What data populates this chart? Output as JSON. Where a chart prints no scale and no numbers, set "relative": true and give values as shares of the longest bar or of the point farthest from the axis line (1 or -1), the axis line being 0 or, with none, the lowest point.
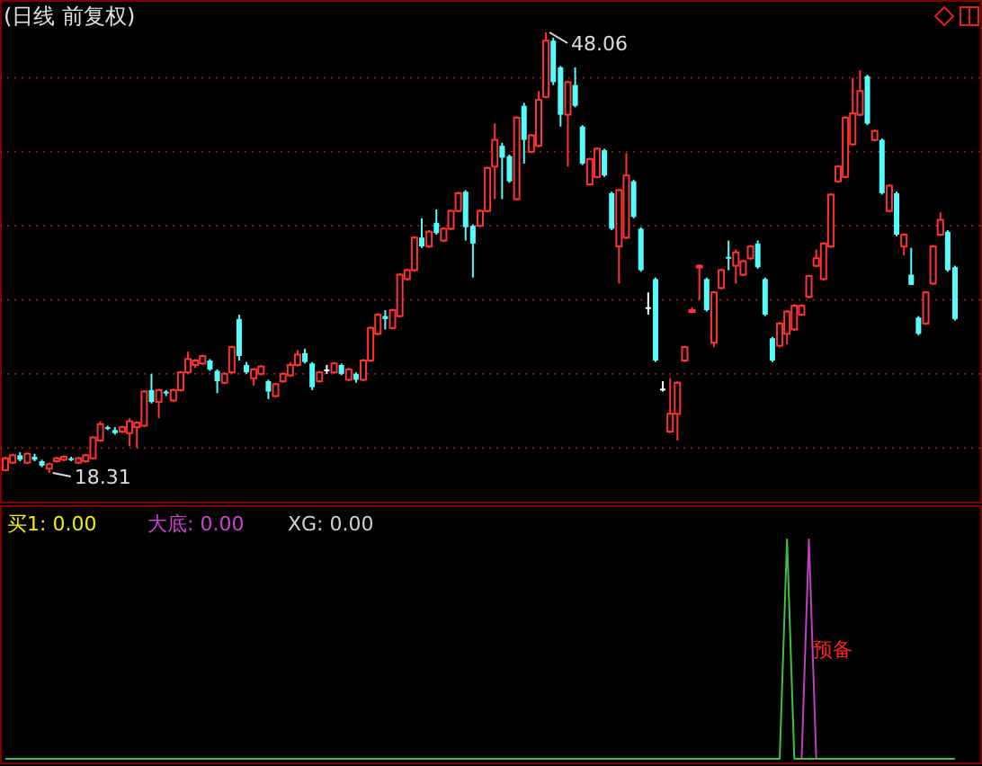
{
  "chart_data": [
    {
      "type": "candlestick",
      "title": "(日线 前复权)",
      "categories": [
        null,
        null,
        null,
        null,
        null,
        null,
        null,
        null,
        null,
        null,
        null,
        null,
        null,
        null,
        null,
        null,
        null,
        null,
        null,
        null,
        null,
        null,
        null,
        null,
        null,
        null,
        null,
        null,
        null,
        null,
        null,
        null,
        null,
        null,
        null,
        null,
        null,
        null,
        null,
        null,
        null,
        null,
        null,
        null,
        null,
        null,
        null,
        null,
        null,
        null,
        null,
        null,
        null,
        null,
        null,
        null,
        null,
        null,
        null,
        null,
        null,
        null,
        null,
        null,
        null,
        null,
        null,
        null,
        null,
        null,
        null,
        null,
        null,
        null,
        null,
        null,
        null,
        null,
        null,
        null,
        null,
        null,
        null,
        null,
        null,
        null,
        null,
        null,
        null,
        null,
        null,
        null,
        null,
        null,
        null,
        null,
        null,
        null,
        null,
        null,
        null,
        null,
        null,
        null,
        null,
        null,
        null,
        null,
        null,
        null,
        null,
        null,
        null,
        null,
        null,
        null,
        null,
        null,
        null,
        null,
        null,
        null,
        null,
        null,
        null,
        null,
        null,
        null,
        null,
        null,
        null
      ],
      "ohlc": [
        [
          18.5,
          19.4,
          18.4,
          19.3
        ],
        [
          19.0,
          19.6,
          18.9,
          19.5
        ],
        [
          19.5,
          19.7,
          19.1,
          19.2
        ],
        [
          19.0,
          19.7,
          18.9,
          19.6
        ],
        [
          19.4,
          19.6,
          19.1,
          19.2
        ],
        [
          19.1,
          19.2,
          18.7,
          18.8
        ],
        [
          18.6,
          19.0,
          18.31,
          18.9
        ],
        [
          19.1,
          19.4,
          19.0,
          19.3
        ],
        [
          19.2,
          19.5,
          19.1,
          19.4
        ],
        [
          19.3,
          19.4,
          19.1,
          19.2
        ],
        [
          19.0,
          19.4,
          18.9,
          19.3
        ],
        [
          19.1,
          19.6,
          19.0,
          19.5
        ],
        [
          19.3,
          20.8,
          19.2,
          20.7
        ],
        [
          20.5,
          21.8,
          20.4,
          21.6
        ],
        [
          21.4,
          21.5,
          21.2,
          21.3
        ],
        [
          21.2,
          21.4,
          20.9,
          21.0
        ],
        [
          21.1,
          21.5,
          21.0,
          21.4
        ],
        [
          21.0,
          22.0,
          20.1,
          21.8
        ],
        [
          21.4,
          21.8,
          20.0,
          21.7
        ],
        [
          21.5,
          23.9,
          21.4,
          23.8
        ],
        [
          23.9,
          25.0,
          23.0,
          23.1
        ],
        [
          23.1,
          24.0,
          22.0,
          23.9
        ],
        [
          23.8,
          23.9,
          23.5,
          23.7
        ],
        [
          23.2,
          24.0,
          23.1,
          23.9
        ],
        [
          23.9,
          25.2,
          23.8,
          25.1
        ],
        [
          25.1,
          26.5,
          25.0,
          26.0
        ],
        [
          25.6,
          26.0,
          25.4,
          25.9
        ],
        [
          25.7,
          26.3,
          25.6,
          26.2
        ],
        [
          25.9,
          26.0,
          25.2,
          25.3
        ],
        [
          25.2,
          25.3,
          23.7,
          24.5
        ],
        [
          24.4,
          25.1,
          24.3,
          25.0
        ],
        [
          25.1,
          26.9,
          25.0,
          26.8
        ],
        [
          28.7,
          29.0,
          25.9,
          26.2
        ],
        [
          25.6,
          25.8,
          25.0,
          25.1
        ],
        [
          24.7,
          25.4,
          24.2,
          25.3
        ],
        [
          25.0,
          25.6,
          24.9,
          25.5
        ],
        [
          24.5,
          24.6,
          23.3,
          23.8
        ],
        [
          23.5,
          24.4,
          23.4,
          24.3
        ],
        [
          24.5,
          25.1,
          24.4,
          25.0
        ],
        [
          24.9,
          25.8,
          24.8,
          25.6
        ],
        [
          25.6,
          26.6,
          25.5,
          26.3
        ],
        [
          26.4,
          26.7,
          25.7,
          25.8
        ],
        [
          25.7,
          25.8,
          23.9,
          24.1
        ],
        [
          24.5,
          25.2,
          24.4,
          25.1
        ],
        [
          25.3,
          25.6,
          25.0,
          25.3
        ],
        [
          25.1,
          25.8,
          25.0,
          25.7
        ],
        [
          25.6,
          25.7,
          24.9,
          25.0
        ],
        [
          24.6,
          25.4,
          24.5,
          25.3
        ],
        [
          25.0,
          25.1,
          24.4,
          24.6
        ],
        [
          24.6,
          26.0,
          24.5,
          25.9
        ],
        [
          25.9,
          28.2,
          25.8,
          28.1
        ],
        [
          27.7,
          29.1,
          27.6,
          29.0
        ],
        [
          28.9,
          29.3,
          28.0,
          28.7
        ],
        [
          28.1,
          29.4,
          28.0,
          29.3
        ],
        [
          28.9,
          31.8,
          28.8,
          31.7
        ],
        [
          31.4,
          32.1,
          31.3,
          32.0
        ],
        [
          32.0,
          34.3,
          31.9,
          34.2
        ],
        [
          34.2,
          35.5,
          33.5,
          33.6
        ],
        [
          33.6,
          34.7,
          33.5,
          34.6
        ],
        [
          35.2,
          36.1,
          34.4,
          34.5
        ],
        [
          34.0,
          34.9,
          33.9,
          34.8
        ],
        [
          34.8,
          36.1,
          34.7,
          36.0
        ],
        [
          36.0,
          37.3,
          35.9,
          37.2
        ],
        [
          37.3,
          37.4,
          34.0,
          34.9
        ],
        [
          35.0,
          35.1,
          31.5,
          33.8
        ],
        [
          35.0,
          36.1,
          34.9,
          36.0
        ],
        [
          36.0,
          39.0,
          35.9,
          38.9
        ],
        [
          39.0,
          41.9,
          36.8,
          40.8
        ],
        [
          40.4,
          40.6,
          36.8,
          39.6
        ],
        [
          39.7,
          39.8,
          37.9,
          38.0
        ],
        [
          36.8,
          42.4,
          36.7,
          42.3
        ],
        [
          43.1,
          43.3,
          39.2,
          40.8
        ],
        [
          40.0,
          41.2,
          39.9,
          41.1
        ],
        [
          40.4,
          44.1,
          40.3,
          43.5
        ],
        [
          43.7,
          48.06,
          43.6,
          47.5
        ],
        [
          47.5,
          47.7,
          44.5,
          44.7
        ],
        [
          45.7,
          45.8,
          41.7,
          42.5
        ],
        [
          42.5,
          44.8,
          39.0,
          44.7
        ],
        [
          44.5,
          45.7,
          43.0,
          43.1
        ],
        [
          41.7,
          41.8,
          39.1,
          39.2
        ],
        [
          37.8,
          39.6,
          37.7,
          39.5
        ],
        [
          38.3,
          40.3,
          38.2,
          40.2
        ],
        [
          40.1,
          40.2,
          38.3,
          38.4
        ],
        [
          37.2,
          37.3,
          34.7,
          34.8
        ],
        [
          33.6,
          37.5,
          31.1,
          37.4
        ],
        [
          34.2,
          39.9,
          34.1,
          38.4
        ],
        [
          38.0,
          38.1,
          35.5,
          35.6
        ],
        [
          34.8,
          34.9,
          31.9,
          32.0
        ],
        [
          29.5,
          30.5,
          29.0,
          29.5
        ],
        [
          31.4,
          31.5,
          25.8,
          25.9
        ],
        [
          24.0,
          24.5,
          23.8,
          24.0
        ],
        [
          21.1,
          24.7,
          21.0,
          22.3
        ],
        [
          22.3,
          24.5,
          20.5,
          24.4
        ],
        [
          25.9,
          26.9,
          25.8,
          26.8
        ],
        [
          29.2,
          29.5,
          29.1,
          29.3
        ],
        [
          32.2,
          32.4,
          30.0,
          32.3
        ],
        [
          31.4,
          31.5,
          29.2,
          29.3
        ],
        [
          27.1,
          30.6,
          26.8,
          30.5
        ],
        [
          30.8,
          32.1,
          30.7,
          32.0
        ],
        [
          32.9,
          34.0,
          32.0,
          32.8
        ],
        [
          32.3,
          33.4,
          31.1,
          33.2
        ],
        [
          31.7,
          32.7,
          31.6,
          32.6
        ],
        [
          32.8,
          33.7,
          32.7,
          33.6
        ],
        [
          33.8,
          34.0,
          32.1,
          32.2
        ],
        [
          31.4,
          31.5,
          28.9,
          29.0
        ],
        [
          27.4,
          27.5,
          25.8,
          25.9
        ],
        [
          26.9,
          28.5,
          26.8,
          28.4
        ],
        [
          27.7,
          29.3,
          27.0,
          29.2
        ],
        [
          28.0,
          29.7,
          27.9,
          29.6
        ],
        [
          29.0,
          29.7,
          28.9,
          29.6
        ],
        [
          30.2,
          31.7,
          30.1,
          31.6
        ],
        [
          32.3,
          33.4,
          32.2,
          32.8
        ],
        [
          31.4,
          33.9,
          31.3,
          33.8
        ],
        [
          33.6,
          37.2,
          33.5,
          37.1
        ],
        [
          38.0,
          39.1,
          37.9,
          39.0
        ],
        [
          38.3,
          42.4,
          38.2,
          42.3
        ],
        [
          40.5,
          45.0,
          40.4,
          42.6
        ],
        [
          42.5,
          45.5,
          42.4,
          44.1
        ],
        [
          45.1,
          45.2,
          41.8,
          41.9
        ],
        [
          40.8,
          41.5,
          40.7,
          41.4
        ],
        [
          40.8,
          40.9,
          37.1,
          37.2
        ],
        [
          36.0,
          37.8,
          35.9,
          37.7
        ],
        [
          37.2,
          37.3,
          34.3,
          34.4
        ],
        [
          33.6,
          34.5,
          33.0,
          34.4
        ],
        [
          31.7,
          33.5,
          31.0,
          31.0
        ],
        [
          28.8,
          28.9,
          27.6,
          27.7
        ],
        [
          28.4,
          30.6,
          28.3,
          30.5
        ],
        [
          31.1,
          33.7,
          31.0,
          33.6
        ],
        [
          34.4,
          35.9,
          34.3,
          35.4
        ],
        [
          34.6,
          34.7,
          31.9,
          32.0
        ],
        [
          32.2,
          32.3,
          28.6,
          28.7
        ]
      ],
      "yticks": [
        {
          "value": 20,
          "label": null
        },
        {
          "value": 25,
          "label": null
        },
        {
          "value": 30,
          "label": null
        },
        {
          "value": 35,
          "label": null
        },
        {
          "value": 40,
          "label": null
        },
        {
          "value": 45,
          "label": null
        }
      ],
      "grid": "y",
      "annotations": [
        "48.06",
        "18.31"
      ]
    },
    {
      "type": "line",
      "relative": true,
      "categories": [
        null,
        null,
        null,
        null,
        null,
        null,
        null,
        null,
        null,
        null,
        null,
        null,
        null,
        null,
        null,
        null,
        null,
        null,
        null,
        null,
        null,
        null,
        null,
        null,
        null,
        null,
        null,
        null,
        null,
        null,
        null,
        null,
        null,
        null,
        null,
        null,
        null,
        null,
        null,
        null,
        null,
        null,
        null,
        null,
        null,
        null,
        null,
        null,
        null,
        null,
        null,
        null,
        null,
        null,
        null,
        null,
        null,
        null,
        null,
        null,
        null,
        null,
        null,
        null,
        null,
        null,
        null,
        null,
        null,
        null,
        null,
        null,
        null,
        null,
        null,
        null,
        null,
        null,
        null,
        null,
        null,
        null,
        null,
        null,
        null,
        null,
        null,
        null,
        null,
        null,
        null,
        null,
        null,
        null,
        null,
        null,
        null,
        null,
        null,
        null,
        null,
        null,
        null,
        null,
        null,
        null,
        null,
        null,
        null,
        null,
        null,
        null,
        null,
        null,
        null,
        null,
        null,
        null,
        null,
        null,
        null,
        null,
        null,
        null,
        null,
        null,
        null,
        null,
        null,
        null,
        null
      ],
      "series": [
        {
          "color": "#c040c0",
          "values": [
            null,
            null,
            null,
            null,
            null,
            null,
            null,
            null,
            null,
            null,
            null,
            null,
            null,
            null,
            null,
            null,
            null,
            null,
            null,
            null,
            null,
            null,
            null,
            null,
            null,
            null,
            null,
            null,
            null,
            null,
            null,
            null,
            null,
            null,
            null,
            null,
            null,
            null,
            null,
            null,
            null,
            null,
            null,
            null,
            null,
            null,
            null,
            null,
            null,
            null,
            null,
            null,
            null,
            null,
            null,
            null,
            null,
            null,
            null,
            null,
            null,
            null,
            null,
            null,
            null,
            null,
            null,
            null,
            null,
            null,
            null,
            null,
            null,
            null,
            null,
            null,
            null,
            null,
            null,
            null,
            null,
            null,
            null,
            null,
            null,
            null,
            null,
            null,
            null,
            null,
            null,
            null,
            null,
            null,
            null,
            null,
            null,
            null,
            null,
            null,
            null,
            null,
            null,
            null,
            null,
            null,
            null,
            null,
            0,
            0,
            1,
            0,
            null,
            null,
            null,
            null,
            null,
            null,
            null,
            null,
            null,
            null,
            null,
            null,
            null,
            null,
            null,
            null,
            null,
            null,
            null
          ]
        },
        {
          "color": "#40c040",
          "values": [
            0,
            0,
            0,
            0,
            0,
            0,
            0,
            0,
            0,
            0,
            0,
            0,
            0,
            0,
            0,
            0,
            0,
            0,
            0,
            0,
            0,
            0,
            0,
            0,
            0,
            0,
            0,
            0,
            0,
            0,
            0,
            0,
            0,
            0,
            0,
            0,
            0,
            0,
            0,
            0,
            0,
            0,
            0,
            0,
            0,
            0,
            0,
            0,
            0,
            0,
            0,
            0,
            0,
            0,
            0,
            0,
            0,
            0,
            0,
            0,
            0,
            0,
            0,
            0,
            0,
            0,
            0,
            0,
            0,
            0,
            0,
            0,
            0,
            0,
            0,
            0,
            0,
            0,
            0,
            0,
            0,
            0,
            0,
            0,
            0,
            0,
            0,
            0,
            0,
            0,
            0,
            0,
            0,
            0,
            0,
            0,
            0,
            0,
            0,
            0,
            0,
            0,
            0,
            0,
            0,
            0,
            0,
            1,
            0,
            0,
            0,
            0,
            0,
            0,
            0,
            0,
            0,
            0,
            0,
            0,
            0,
            0,
            0,
            0,
            0,
            0,
            0,
            0,
            0,
            0,
            0
          ]
        }
      ],
      "annotations": [
        "买1: 0.00",
        "大底: 0.00",
        "XG: 0.00",
        "预备"
      ]
    }
  ]
}
